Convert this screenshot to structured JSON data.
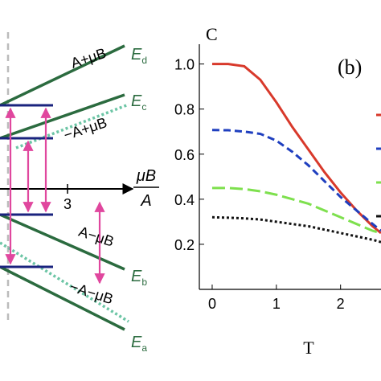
{
  "chart_data": {
    "type": "line",
    "ylabel": "C",
    "xlabel": "T",
    "annotation": "(b)",
    "x": [
      0,
      0.25,
      0.5,
      0.75,
      1,
      1.25,
      1.5,
      1.75,
      2,
      2.25,
      2.5,
      2.63
    ],
    "series": [
      {
        "color": "#d8392b",
        "dash": "",
        "values": [
          1.0,
          1.0,
          0.99,
          0.93,
          0.83,
          0.72,
          0.62,
          0.52,
          0.43,
          0.35,
          0.28,
          0.25
        ]
      },
      {
        "color": "#1f3fbf",
        "dash": "9 5",
        "values": [
          0.707,
          0.706,
          0.7,
          0.69,
          0.66,
          0.61,
          0.55,
          0.48,
          0.41,
          0.35,
          0.29,
          0.26
        ]
      },
      {
        "color": "#7ee04e",
        "dash": "16 6",
        "values": [
          0.45,
          0.45,
          0.445,
          0.435,
          0.42,
          0.4,
          0.38,
          0.35,
          0.32,
          0.29,
          0.26,
          0.25
        ]
      },
      {
        "color": "#111111",
        "dash": "3 3",
        "values": [
          0.32,
          0.318,
          0.315,
          0.31,
          0.3,
          0.29,
          0.28,
          0.265,
          0.25,
          0.235,
          0.22,
          0.21
        ]
      }
    ],
    "xlim": [
      -0.2,
      2.63
    ],
    "ylim": [
      0,
      1.07
    ],
    "xticks": [
      0,
      1,
      2
    ],
    "yticks": [
      0.2,
      0.4,
      0.6,
      0.8,
      {
        "value": 1,
        "label": "1.0"
      }
    ]
  },
  "diagram": {
    "axis_tick": "3",
    "axis_label_num": "μB",
    "axis_label_den": "A",
    "line_labels": [
      "A+μB",
      "−A+μB",
      "A−μB",
      "−A−μB"
    ],
    "levels": [
      {
        "main": "E",
        "sub": "d"
      },
      {
        "main": "E",
        "sub": "c"
      },
      {
        "main": "E",
        "sub": "b"
      },
      {
        "main": "E",
        "sub": "a"
      }
    ]
  }
}
